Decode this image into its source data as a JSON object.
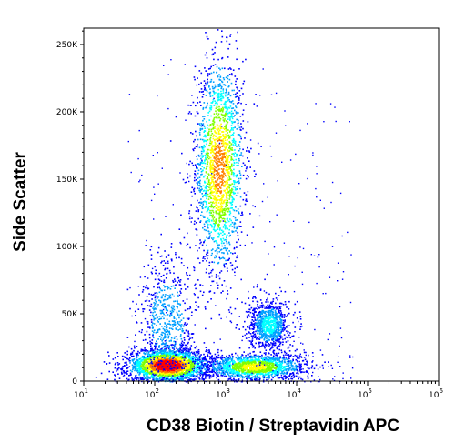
{
  "chart_data": {
    "type": "scatter",
    "title": "",
    "xlabel": "CD38 Biotin / Streptavidin APC",
    "ylabel": "Side Scatter",
    "x_scale": "log",
    "xlim": [
      10,
      1000000
    ],
    "ylim": [
      0,
      262144
    ],
    "x_ticks": [
      {
        "value": 10,
        "base": "10",
        "exp": "1"
      },
      {
        "value": 100,
        "base": "10",
        "exp": "2"
      },
      {
        "value": 1000,
        "base": "10",
        "exp": "3"
      },
      {
        "value": 10000,
        "base": "10",
        "exp": "4"
      },
      {
        "value": 100000,
        "base": "10",
        "exp": "5"
      },
      {
        "value": 1000000,
        "base": "10",
        "exp": "6"
      }
    ],
    "y_ticks": [
      {
        "value": 0,
        "label": "0"
      },
      {
        "value": 50000,
        "label": "50K"
      },
      {
        "value": 100000,
        "label": "100K"
      },
      {
        "value": 150000,
        "label": "150K"
      },
      {
        "value": 200000,
        "label": "200K"
      },
      {
        "value": 250000,
        "label": "250K"
      }
    ],
    "density_colormap": [
      "#0000ff",
      "#00a0ff",
      "#00ffff",
      "#80ff00",
      "#ffff00",
      "#ff8000",
      "#ff0000"
    ],
    "populations": [
      {
        "center_x": 800,
        "center_y": 160000,
        "spread_log_x": 0.17,
        "spread_y": 40000,
        "relative_density": 0.75
      },
      {
        "center_x": 150,
        "center_y": 12000,
        "spread_log_x": 0.28,
        "spread_y": 6000,
        "relative_density": 1.0
      },
      {
        "center_x": 2500,
        "center_y": 11000,
        "spread_log_x": 0.35,
        "spread_y": 5000,
        "relative_density": 0.6
      },
      {
        "center_x": 4000,
        "center_y": 42000,
        "spread_log_x": 0.14,
        "spread_y": 9000,
        "relative_density": 0.35
      },
      {
        "center_x": 150,
        "center_y": 45000,
        "spread_log_x": 0.2,
        "spread_y": 25000,
        "relative_density": 0.25
      }
    ],
    "grid": false,
    "legend": "none"
  }
}
